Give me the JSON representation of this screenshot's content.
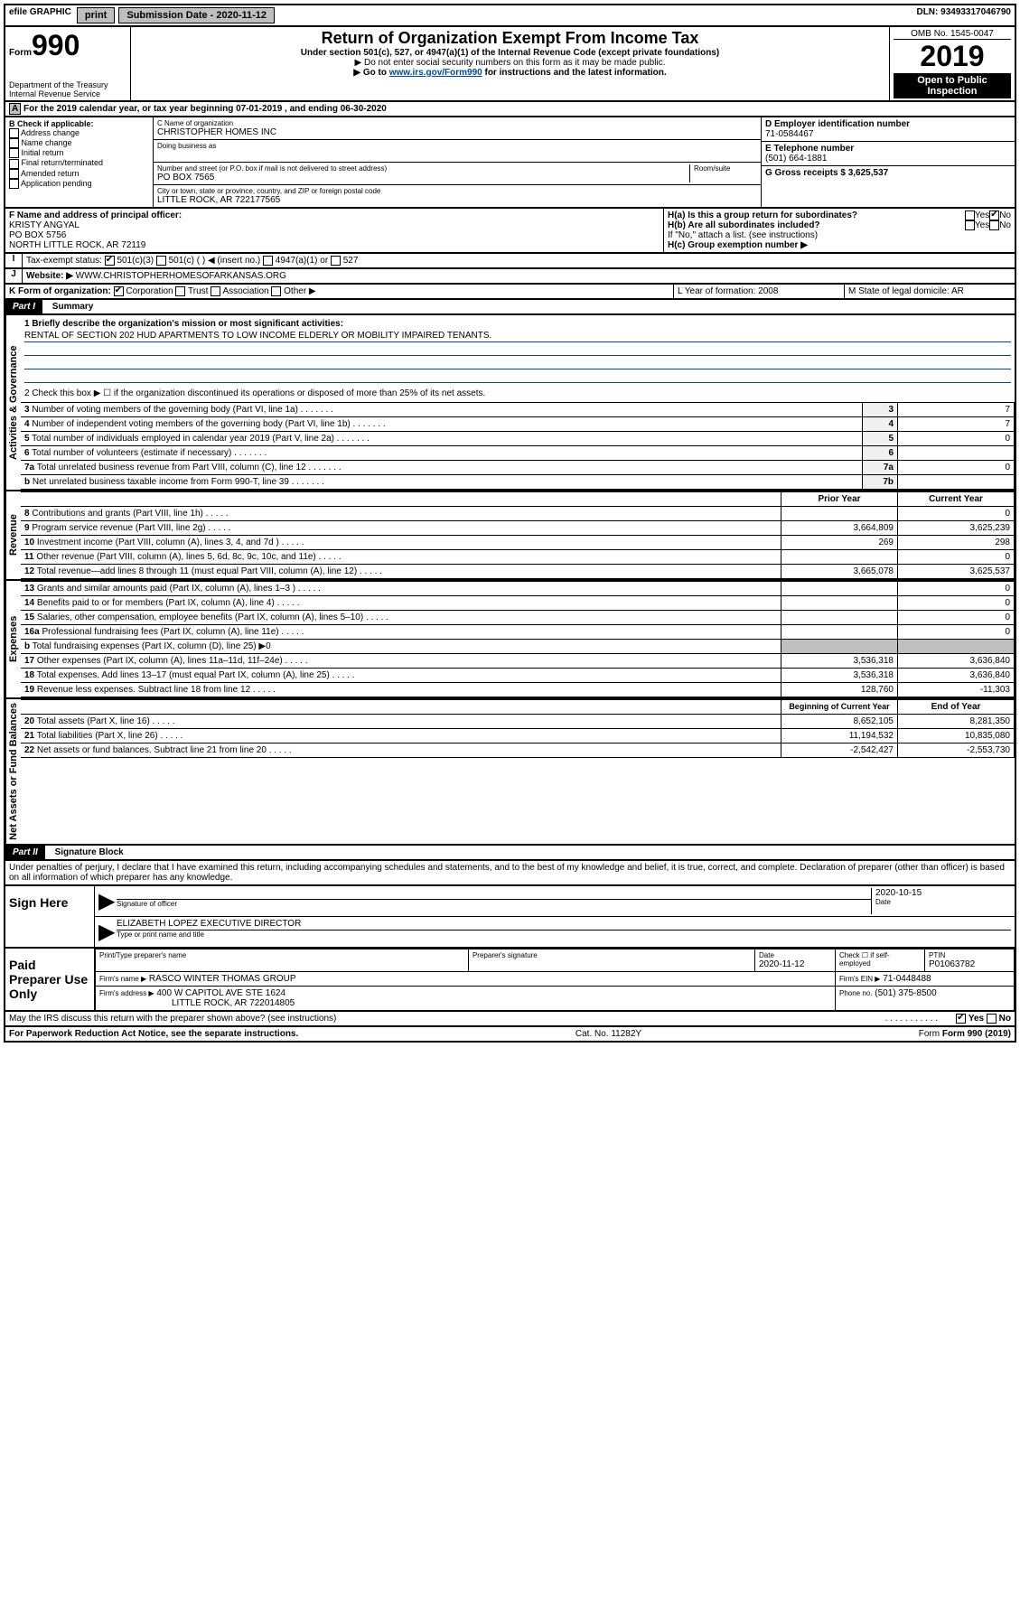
{
  "top": {
    "efile": "efile GRAPHIC",
    "print": "print",
    "sub_label": "Submission Date - 2020-11-12",
    "dln": "DLN: 93493317046790"
  },
  "header": {
    "form_word": "Form",
    "form_num": "990",
    "dept": "Department of the Treasury Internal Revenue Service",
    "title": "Return of Organization Exempt From Income Tax",
    "subtitle": "Under section 501(c), 527, or 4947(a)(1) of the Internal Revenue Code (except private foundations)",
    "note1": "▶ Do not enter social security numbers on this form as it may be made public.",
    "note2_pre": "▶ Go to ",
    "note2_link": "www.irs.gov/Form990",
    "note2_post": " for instructions and the latest information.",
    "omb": "OMB No. 1545-0047",
    "year": "2019",
    "open": "Open to Public Inspection"
  },
  "period": "For the 2019 calendar year, or tax year beginning 07-01-2019    , and ending 06-30-2020",
  "boxB": {
    "label": "B Check if applicable:",
    "opts": [
      "Address change",
      "Name change",
      "Initial return",
      "Final return/terminated",
      "Amended return",
      "Application pending"
    ]
  },
  "boxC": {
    "name_label": "C Name of organization",
    "name": "CHRISTOPHER HOMES INC",
    "dba_label": "Doing business as",
    "addr_label": "Number and street (or P.O. box if mail is not delivered to street address)",
    "room_label": "Room/suite",
    "addr": "PO BOX 7565",
    "city_label": "City or town, state or province, country, and ZIP or foreign postal code",
    "city": "LITTLE ROCK, AR  722177565"
  },
  "boxD": {
    "label": "D Employer identification number",
    "value": "71-0584467"
  },
  "boxE": {
    "label": "E Telephone number",
    "value": "(501) 664-1881"
  },
  "boxG": {
    "label": "G Gross receipts $ 3,625,537"
  },
  "boxF": {
    "label": "F Name and address of principal officer:",
    "name": "KRISTY ANGYAL",
    "addr1": "PO BOX 5756",
    "addr2": "NORTH LITTLE ROCK, AR  72119"
  },
  "boxH": {
    "a": "H(a)  Is this a group return for subordinates?",
    "b": "H(b)  Are all subordinates included?",
    "b_note": "If \"No,\" attach a list. (see instructions)",
    "c": "H(c)  Group exemption number ▶"
  },
  "taxExempt": {
    "label": "Tax-exempt status:",
    "o1": "501(c)(3)",
    "o2": "501(c) (  ) ◀ (insert no.)",
    "o3": "4947(a)(1) or",
    "o4": "527"
  },
  "boxJ": {
    "label": "Website: ▶",
    "value": "WWW.CHRISTOPHERHOMESOFARKANSAS.ORG"
  },
  "boxK": {
    "label": "K Form of organization:",
    "opts": [
      "Corporation",
      "Trust",
      "Association",
      "Other ▶"
    ]
  },
  "boxL": {
    "label": "L Year of formation: 2008"
  },
  "boxM": {
    "label": "M State of legal domicile: AR"
  },
  "part1": {
    "header": "Part I",
    "title": "Summary",
    "q1_label": "1  Briefly describe the organization's mission or most significant activities:",
    "q1_text": "RENTAL OF SECTION 202 HUD APARTMENTS TO LOW INCOME ELDERLY OR MOBILITY IMPAIRED TENANTS.",
    "q2": "2  Check this box ▶ ☐  if the organization discontinued its operations or disposed of more than 25% of its net assets.",
    "sideways1": "Activities & Governance",
    "sideways2": "Revenue",
    "sideways3": "Expenses",
    "sideways4": "Net Assets or Fund Balances",
    "lines_gov": [
      {
        "n": "3",
        "t": "Number of voting members of the governing body (Part VI, line 1a)",
        "b": "3",
        "v": "7"
      },
      {
        "n": "4",
        "t": "Number of independent voting members of the governing body (Part VI, line 1b)",
        "b": "4",
        "v": "7"
      },
      {
        "n": "5",
        "t": "Total number of individuals employed in calendar year 2019 (Part V, line 2a)",
        "b": "5",
        "v": "0"
      },
      {
        "n": "6",
        "t": "Total number of volunteers (estimate if necessary)",
        "b": "6",
        "v": ""
      },
      {
        "n": "7a",
        "t": "Total unrelated business revenue from Part VIII, column (C), line 12",
        "b": "7a",
        "v": "0"
      },
      {
        "n": "b",
        "t": "Net unrelated business taxable income from Form 990-T, line 39",
        "b": "7b",
        "v": ""
      }
    ],
    "col_prior": "Prior Year",
    "col_current": "Current Year",
    "lines_rev": [
      {
        "n": "8",
        "t": "Contributions and grants (Part VIII, line 1h)",
        "p": "",
        "c": "0"
      },
      {
        "n": "9",
        "t": "Program service revenue (Part VIII, line 2g)",
        "p": "3,664,809",
        "c": "3,625,239"
      },
      {
        "n": "10",
        "t": "Investment income (Part VIII, column (A), lines 3, 4, and 7d )",
        "p": "269",
        "c": "298"
      },
      {
        "n": "11",
        "t": "Other revenue (Part VIII, column (A), lines 5, 6d, 8c, 9c, 10c, and 11e)",
        "p": "",
        "c": "0"
      },
      {
        "n": "12",
        "t": "Total revenue—add lines 8 through 11 (must equal Part VIII, column (A), line 12)",
        "p": "3,665,078",
        "c": "3,625,537"
      }
    ],
    "lines_exp": [
      {
        "n": "13",
        "t": "Grants and similar amounts paid (Part IX, column (A), lines 1–3 )",
        "p": "",
        "c": "0"
      },
      {
        "n": "14",
        "t": "Benefits paid to or for members (Part IX, column (A), line 4)",
        "p": "",
        "c": "0"
      },
      {
        "n": "15",
        "t": "Salaries, other compensation, employee benefits (Part IX, column (A), lines 5–10)",
        "p": "",
        "c": "0"
      },
      {
        "n": "16a",
        "t": "Professional fundraising fees (Part IX, column (A), line 11e)",
        "p": "",
        "c": "0"
      },
      {
        "n": "b",
        "t": "Total fundraising expenses (Part IX, column (D), line 25) ▶0",
        "p": null,
        "c": null
      },
      {
        "n": "17",
        "t": "Other expenses (Part IX, column (A), lines 11a–11d, 11f–24e)",
        "p": "3,536,318",
        "c": "3,636,840"
      },
      {
        "n": "18",
        "t": "Total expenses. Add lines 13–17 (must equal Part IX, column (A), line 25)",
        "p": "3,536,318",
        "c": "3,636,840"
      },
      {
        "n": "19",
        "t": "Revenue less expenses. Subtract line 18 from line 12",
        "p": "128,760",
        "c": "-11,303"
      }
    ],
    "col_begin": "Beginning of Current Year",
    "col_end": "End of Year",
    "lines_net": [
      {
        "n": "20",
        "t": "Total assets (Part X, line 16)",
        "p": "8,652,105",
        "c": "8,281,350"
      },
      {
        "n": "21",
        "t": "Total liabilities (Part X, line 26)",
        "p": "11,194,532",
        "c": "10,835,080"
      },
      {
        "n": "22",
        "t": "Net assets or fund balances. Subtract line 21 from line 20",
        "p": "-2,542,427",
        "c": "-2,553,730"
      }
    ]
  },
  "part2": {
    "header": "Part II",
    "title": "Signature Block",
    "perjury": "Under penalties of perjury, I declare that I have examined this return, including accompanying schedules and statements, and to the best of my knowledge and belief, it is true, correct, and complete. Declaration of preparer (other than officer) is based on all information of which preparer has any knowledge."
  },
  "sign": {
    "here": "Sign Here",
    "sig_label": "Signature of officer",
    "date": "2020-10-15",
    "date_label": "Date",
    "name": "ELIZABETH LOPEZ  EXECUTIVE DIRECTOR",
    "name_label": "Type or print name and title"
  },
  "paid": {
    "label": "Paid Preparer Use Only",
    "col1": "Print/Type preparer's name",
    "col2": "Preparer's signature",
    "col3_label": "Date",
    "col3": "2020-11-12",
    "col4": "Check ☐ if self-employed",
    "col5_label": "PTIN",
    "col5": "P01063782",
    "firm_label": "Firm's name     ▶",
    "firm": "RASCO WINTER THOMAS GROUP",
    "ein_label": "Firm's EIN ▶",
    "ein": "71-0448488",
    "addr_label": "Firm's address ▶",
    "addr1": "400 W CAPITOL AVE STE 1624",
    "addr2": "LITTLE ROCK, AR  722014805",
    "phone_label": "Phone no.",
    "phone": "(501) 375-8500"
  },
  "footer": {
    "discuss": "May the IRS discuss this return with the preparer shown above? (see instructions)",
    "yes": "Yes",
    "no": "No",
    "pra": "For Paperwork Reduction Act Notice, see the separate instructions.",
    "cat": "Cat. No. 11282Y",
    "form": "Form 990 (2019)"
  }
}
